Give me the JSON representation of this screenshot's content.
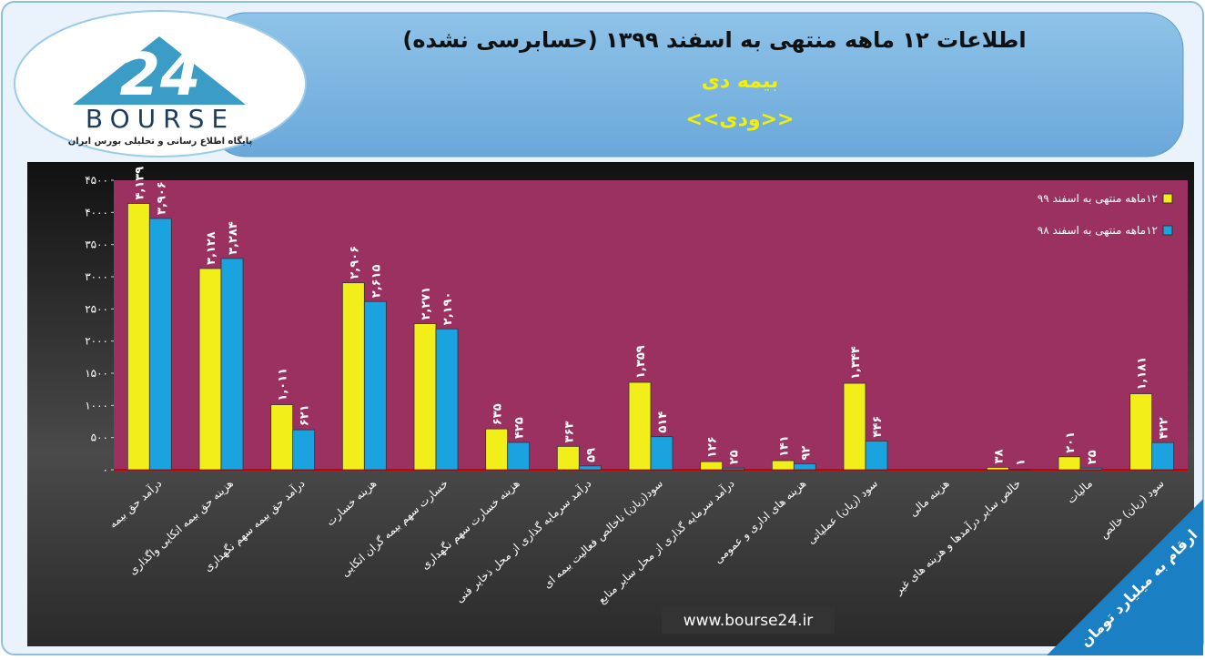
{
  "logo": {
    "mark": "24",
    "name": "BOURSE",
    "tagline": "پایگاه اطلاع رسانی و تحلیلی بورس ایران"
  },
  "header": {
    "title": "اطلاعات ۱۲ ماهه منتهی به اسفند ۱۳۹۹ (حسابرسی نشده)",
    "company": "بیمه دی",
    "symbol": "<<ودی>>"
  },
  "chart_data": {
    "type": "bar",
    "categories": [
      "درآمد حق بیمه",
      "هزینه حق بیمه اتکایی واگذاری",
      "درآمد حق بیمه سهم نگهداری",
      "هزینه خسارت",
      "خسارت سهم بیمه گران اتکایی",
      "هزینه خسارت سهم نگهداری",
      "درآمد سرمایه گذاری از محل ذخایر فنی",
      "سود(زیان) ناخالص فعالیت بیمه ای",
      "درآمد سرمایه گذاری از محل سایر منابع",
      "هزینه های اداری و عمومی",
      "سود (زیان) عملیاتی",
      "هزینه مالی",
      "خالص سایر درآمدها و هزینه های غیر",
      "مالیات",
      "سود (زیان) خالص"
    ],
    "series": [
      {
        "name": "۱۲ماهه منتهی به اسفند ۹۹",
        "color": "#f2ee1a",
        "values": [
          4139,
          3128,
          1011,
          2906,
          2271,
          635,
          363,
          1359,
          126,
          141,
          1344,
          null,
          38,
          201,
          1181
        ],
        "value_labels": [
          "۴,۱۳۹",
          "۳,۱۲۸",
          "۱,۰۱۱",
          "۲,۹۰۶",
          "۲,۲۷۱",
          "۶۳۵",
          "۳۶۳",
          "۱,۳۵۹",
          "۱۲۶",
          "۱۴۱",
          "۱,۳۴۴",
          null,
          "۳۸",
          "۲۰۱",
          "۱,۱۸۱"
        ]
      },
      {
        "name": "۱۲ماهه منتهی به اسفند ۹۸",
        "color": "#1aa3df",
        "values": [
          3906,
          3284,
          621,
          2615,
          2190,
          425,
          59,
          514,
          25,
          92,
          446,
          null,
          1,
          25,
          422
        ],
        "value_labels": [
          "۳,۹۰۶",
          "۳,۲۸۴",
          "۶۲۱",
          "۲,۶۱۵",
          "۲,۱۹۰",
          "۴۲۵",
          "۵۹",
          "۵۱۴",
          "۲۵",
          "۹۲",
          "۴۴۶",
          null,
          "۱",
          "۲۵",
          "۴۲۲"
        ]
      }
    ],
    "ylim": [
      0,
      4500
    ],
    "yticks": [
      {
        "value": 0,
        "label": "۰"
      },
      {
        "value": 500,
        "label": "۵۰۰"
      },
      {
        "value": 1000,
        "label": "۱۰۰۰"
      },
      {
        "value": 1500,
        "label": "۱۵۰۰"
      },
      {
        "value": 2000,
        "label": "۲۰۰۰"
      },
      {
        "value": 2500,
        "label": "۲۵۰۰"
      },
      {
        "value": 3000,
        "label": "۳۰۰۰"
      },
      {
        "value": 3500,
        "label": "۳۵۰۰"
      },
      {
        "value": 4000,
        "label": "۴۰۰۰"
      },
      {
        "value": 4500,
        "label": "۴۵۰۰"
      }
    ],
    "grid": false,
    "legend": "top-right"
  },
  "footer": {
    "url": "www.bourse24.ir",
    "unit_note": "ارقام به میلیارد تومان"
  }
}
